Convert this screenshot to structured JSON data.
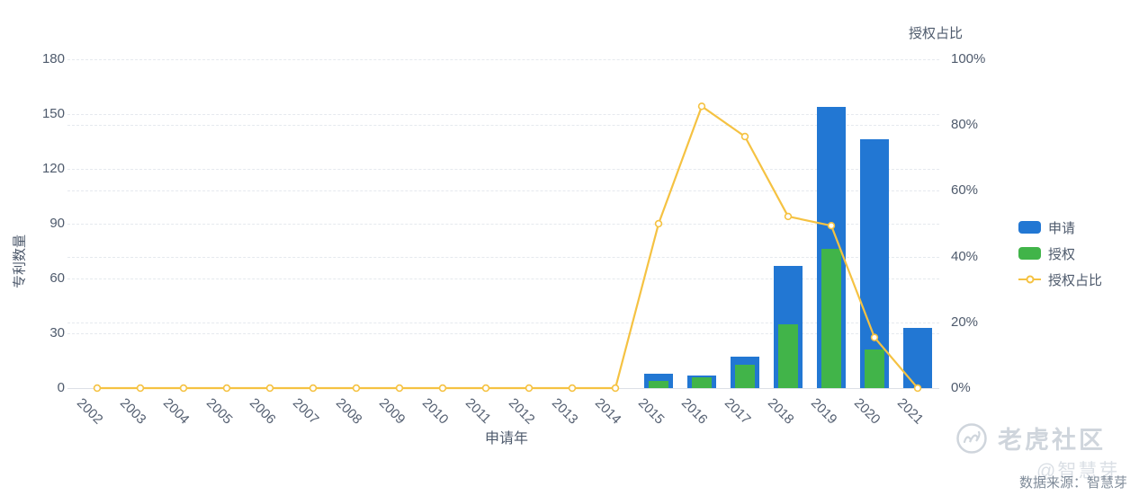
{
  "chart": {
    "left_axis_title": "专利数量",
    "right_axis_title": "授权占比",
    "x_axis_title": "申请年",
    "legend": [
      {
        "label": "申请",
        "marker": "bar",
        "color": "#2277d3"
      },
      {
        "label": "授权",
        "marker": "bar",
        "color": "#41b449"
      },
      {
        "label": "授权占比",
        "marker": "line",
        "color": "#f5c242"
      }
    ]
  },
  "chart_data": {
    "type": "bar",
    "subtype": "bar+line combo, dual y-axis",
    "categories": [
      "2002",
      "2003",
      "2004",
      "2005",
      "2006",
      "2007",
      "2008",
      "2009",
      "2010",
      "2011",
      "2012",
      "2013",
      "2014",
      "2015",
      "2016",
      "2017",
      "2018",
      "2019",
      "2020",
      "2021"
    ],
    "series": [
      {
        "name": "申请",
        "type": "bar",
        "axis": "left",
        "color": "#2277d3",
        "values": [
          0,
          0,
          0,
          0,
          0,
          0,
          0,
          0,
          0,
          0,
          0,
          0,
          0,
          8,
          7,
          17,
          67,
          154,
          136,
          33
        ]
      },
      {
        "name": "授权",
        "type": "bar",
        "axis": "left",
        "color": "#41b449",
        "values": [
          0,
          0,
          0,
          0,
          0,
          0,
          0,
          0,
          0,
          0,
          0,
          0,
          0,
          4,
          6,
          13,
          35,
          76,
          21,
          0
        ]
      },
      {
        "name": "授权占比",
        "type": "line",
        "axis": "right",
        "color": "#f5c242",
        "unit": "%",
        "values": [
          0,
          0,
          0,
          0,
          0,
          0,
          0,
          0,
          0,
          0,
          0,
          0,
          0,
          50,
          85.7,
          76.5,
          52.2,
          49.4,
          15.4,
          0
        ]
      }
    ],
    "title": "",
    "xlabel": "申请年",
    "ylabel": "专利数量",
    "ylabel_right": "授权占比",
    "ylim_left": [
      0,
      180
    ],
    "ylim_right_percent": [
      0,
      100
    ],
    "left_ticks": [
      0,
      30,
      60,
      90,
      120,
      150,
      180
    ],
    "right_ticks_percent": [
      0,
      20,
      40,
      60,
      80,
      100
    ],
    "grid": "dashed horizontal gridlines for both axes",
    "legend_position": "middle-right",
    "x_label_rotation_deg": 45
  },
  "watermarks": {
    "brand_text": "老虎社区",
    "faint_overlay": "@智慧芽",
    "source_text": "数据来源：智慧芽"
  },
  "colors": {
    "applications_bar": "#2277d3",
    "grants_bar": "#41b449",
    "ratio_line": "#f5c242",
    "axis_text": "#4e5a6c",
    "gridline": "#e5e9ee",
    "axis_line": "#dce0e6",
    "brand_watermark": "#cfd5dc",
    "source_text": "#7f8b99"
  }
}
